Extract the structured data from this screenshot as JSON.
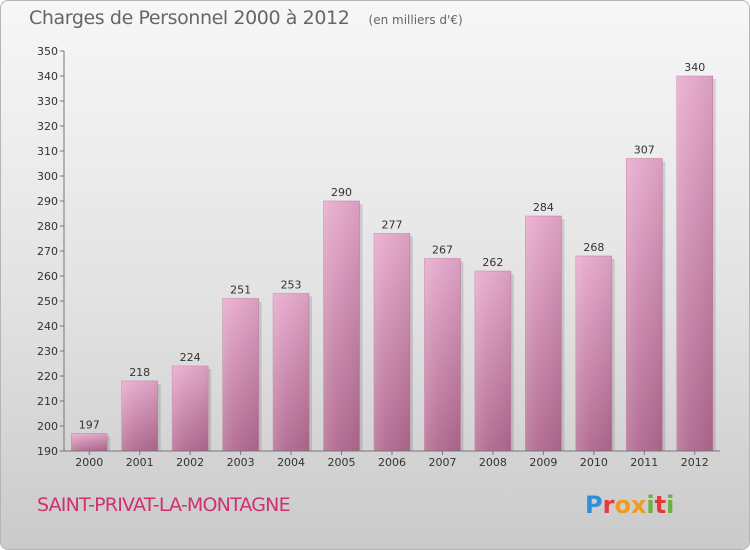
{
  "title": "Charges de Personnel 2000 à 2012",
  "subtitle": "(en milliers d'€)",
  "town": "SAINT-PRIVAT-LA-MONTAGNE",
  "logo": {
    "text": "Proxiti",
    "colors": [
      "#2f8fd8",
      "#f19a1c",
      "#e23b3b",
      "#6ab23c"
    ]
  },
  "chart_data": {
    "type": "bar",
    "categories": [
      "2000",
      "2001",
      "2002",
      "2003",
      "2004",
      "2005",
      "2006",
      "2007",
      "2008",
      "2009",
      "2010",
      "2011",
      "2012"
    ],
    "values": [
      197,
      218,
      224,
      251,
      253,
      290,
      277,
      267,
      262,
      284,
      268,
      307,
      340
    ],
    "ylim": [
      190,
      350
    ],
    "yticks": [
      190,
      200,
      210,
      220,
      230,
      240,
      250,
      260,
      270,
      280,
      290,
      300,
      310,
      320,
      330,
      340,
      350
    ],
    "grid": false,
    "bar_color": "#d98fb6"
  }
}
